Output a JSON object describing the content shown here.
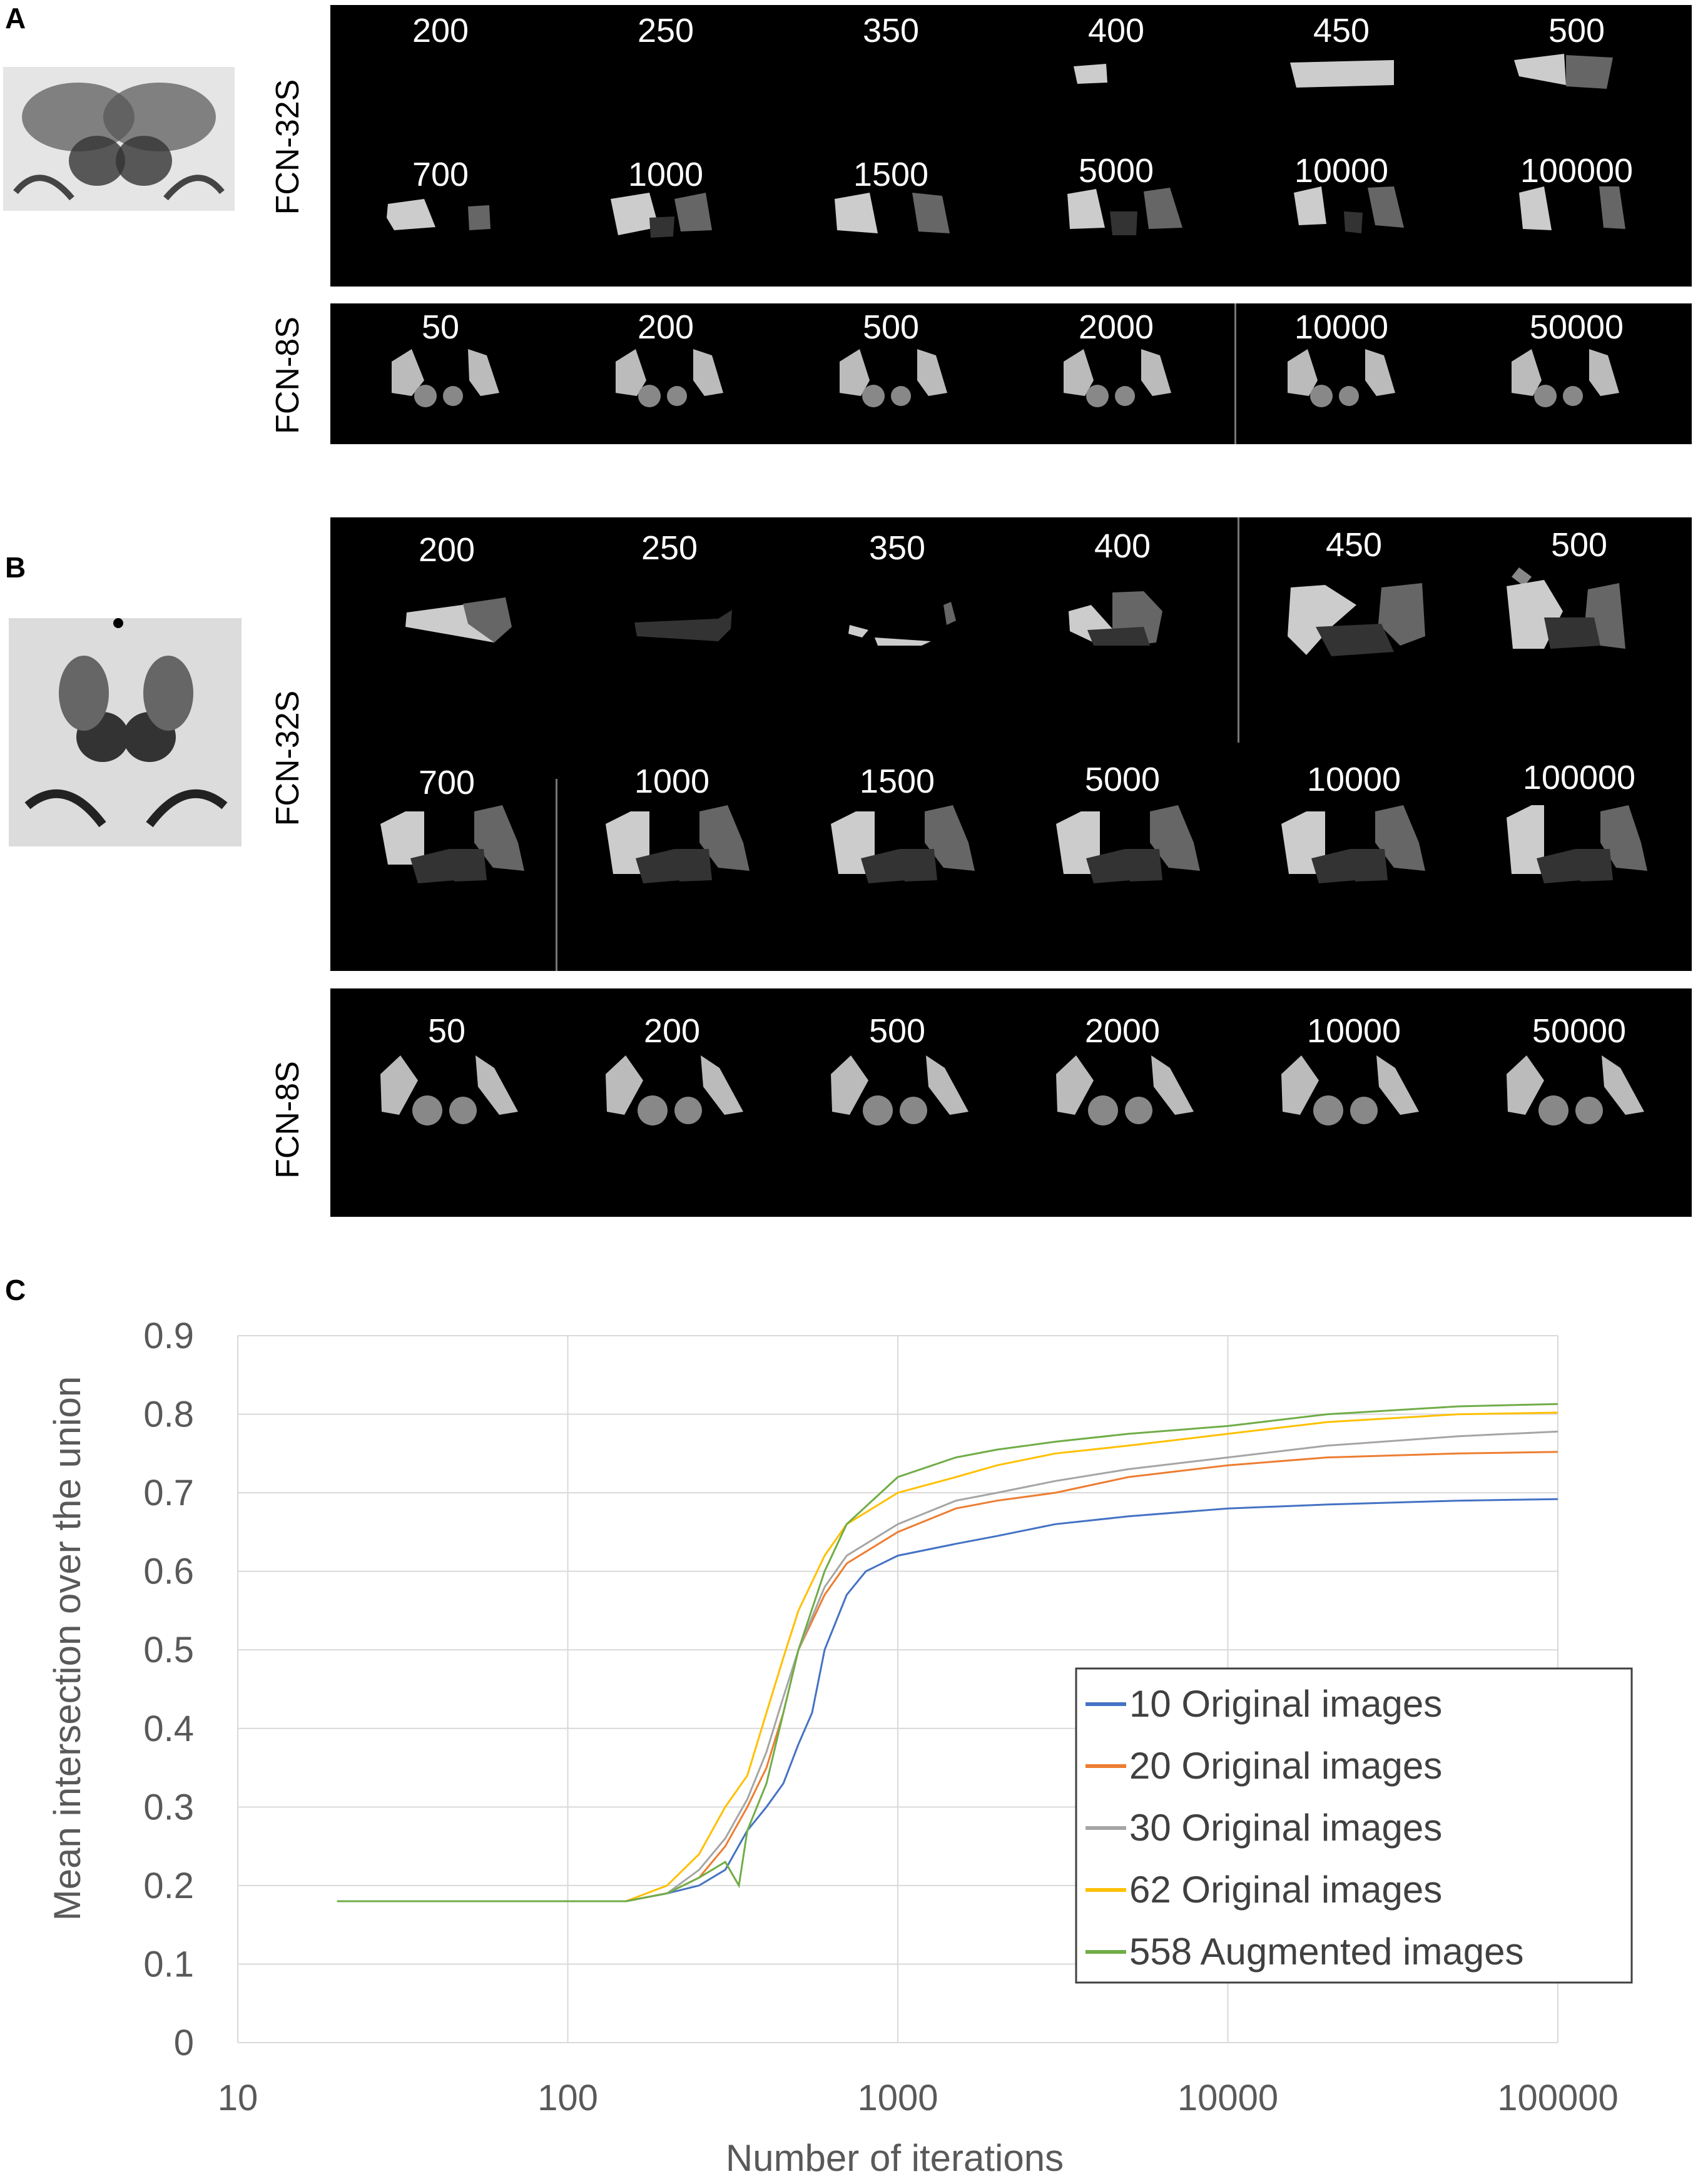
{
  "panels": {
    "a": {
      "letter": "A",
      "rows": [
        {
          "model": "FCN-32S",
          "lines": [
            [
              "200",
              "250",
              "350",
              "400",
              "450",
              "500"
            ],
            [
              "700",
              "1000",
              "1500",
              "5000",
              "10000",
              "100000"
            ]
          ]
        },
        {
          "model": "FCN-8S",
          "lines": [
            [
              "50",
              "200",
              "500",
              "2000",
              "10000",
              "50000"
            ]
          ]
        }
      ]
    },
    "b": {
      "letter": "B",
      "rows": [
        {
          "model": "FCN-32S",
          "lines": [
            [
              "200",
              "250",
              "350",
              "400",
              "450",
              "500"
            ],
            [
              "700",
              "1000",
              "1500",
              "5000",
              "10000",
              "100000"
            ]
          ]
        },
        {
          "model": "FCN-8S",
          "lines": [
            [
              "50",
              "200",
              "500",
              "2000",
              "10000",
              "50000"
            ]
          ]
        }
      ]
    },
    "c": {
      "letter": "C"
    }
  },
  "chart_data": {
    "type": "line",
    "xlabel": "Number of iterations",
    "ylabel": "Mean intersection over the union",
    "x_scale": "log",
    "xlim": [
      10,
      100000
    ],
    "ylim": [
      0,
      0.9
    ],
    "x_ticks": [
      "10",
      "100",
      "1000",
      "10000",
      "100000"
    ],
    "y_ticks": [
      "0",
      "0.1",
      "0.2",
      "0.3",
      "0.4",
      "0.5",
      "0.6",
      "0.7",
      "0.8",
      "0.9"
    ],
    "grid": true,
    "legend_position": "bottom-right",
    "series": [
      {
        "name": "10 Original images",
        "color": "#4472c4",
        "points": [
          [
            20,
            0.18
          ],
          [
            150,
            0.18
          ],
          [
            200,
            0.19
          ],
          [
            250,
            0.2
          ],
          [
            300,
            0.22
          ],
          [
            350,
            0.27
          ],
          [
            400,
            0.3
          ],
          [
            450,
            0.33
          ],
          [
            500,
            0.38
          ],
          [
            550,
            0.42
          ],
          [
            600,
            0.5
          ],
          [
            700,
            0.57
          ],
          [
            800,
            0.6
          ],
          [
            1000,
            0.62
          ],
          [
            1500,
            0.635
          ],
          [
            2000,
            0.645
          ],
          [
            3000,
            0.66
          ],
          [
            5000,
            0.67
          ],
          [
            10000,
            0.68
          ],
          [
            20000,
            0.685
          ],
          [
            50000,
            0.69
          ],
          [
            100000,
            0.692
          ]
        ]
      },
      {
        "name": "20 Original images",
        "color": "#ed7d31",
        "points": [
          [
            20,
            0.18
          ],
          [
            150,
            0.18
          ],
          [
            200,
            0.19
          ],
          [
            250,
            0.21
          ],
          [
            300,
            0.25
          ],
          [
            350,
            0.3
          ],
          [
            400,
            0.35
          ],
          [
            450,
            0.42
          ],
          [
            500,
            0.5
          ],
          [
            600,
            0.57
          ],
          [
            700,
            0.61
          ],
          [
            1000,
            0.65
          ],
          [
            1500,
            0.68
          ],
          [
            2000,
            0.69
          ],
          [
            3000,
            0.7
          ],
          [
            5000,
            0.72
          ],
          [
            10000,
            0.735
          ],
          [
            20000,
            0.745
          ],
          [
            50000,
            0.75
          ],
          [
            100000,
            0.752
          ]
        ]
      },
      {
        "name": "30 Original images",
        "color": "#a5a5a5",
        "points": [
          [
            20,
            0.18
          ],
          [
            150,
            0.18
          ],
          [
            200,
            0.19
          ],
          [
            250,
            0.22
          ],
          [
            300,
            0.26
          ],
          [
            350,
            0.31
          ],
          [
            400,
            0.37
          ],
          [
            450,
            0.44
          ],
          [
            500,
            0.5
          ],
          [
            600,
            0.58
          ],
          [
            700,
            0.62
          ],
          [
            1000,
            0.66
          ],
          [
            1500,
            0.69
          ],
          [
            2000,
            0.7
          ],
          [
            3000,
            0.715
          ],
          [
            5000,
            0.73
          ],
          [
            10000,
            0.745
          ],
          [
            20000,
            0.76
          ],
          [
            50000,
            0.772
          ],
          [
            100000,
            0.778
          ]
        ]
      },
      {
        "name": "62 Original images",
        "color": "#ffc000",
        "points": [
          [
            20,
            0.18
          ],
          [
            150,
            0.18
          ],
          [
            200,
            0.2
          ],
          [
            250,
            0.24
          ],
          [
            300,
            0.3
          ],
          [
            350,
            0.34
          ],
          [
            400,
            0.42
          ],
          [
            450,
            0.49
          ],
          [
            500,
            0.55
          ],
          [
            600,
            0.62
          ],
          [
            700,
            0.66
          ],
          [
            1000,
            0.7
          ],
          [
            1500,
            0.72
          ],
          [
            2000,
            0.735
          ],
          [
            3000,
            0.75
          ],
          [
            5000,
            0.76
          ],
          [
            10000,
            0.775
          ],
          [
            20000,
            0.79
          ],
          [
            50000,
            0.8
          ],
          [
            100000,
            0.802
          ]
        ]
      },
      {
        "name": "558 Augmented images",
        "color": "#70ad47",
        "points": [
          [
            20,
            0.18
          ],
          [
            150,
            0.18
          ],
          [
            200,
            0.19
          ],
          [
            250,
            0.21
          ],
          [
            300,
            0.23
          ],
          [
            330,
            0.2
          ],
          [
            350,
            0.27
          ],
          [
            400,
            0.33
          ],
          [
            450,
            0.42
          ],
          [
            500,
            0.5
          ],
          [
            600,
            0.6
          ],
          [
            700,
            0.66
          ],
          [
            1000,
            0.72
          ],
          [
            1500,
            0.745
          ],
          [
            2000,
            0.755
          ],
          [
            3000,
            0.765
          ],
          [
            5000,
            0.775
          ],
          [
            10000,
            0.785
          ],
          [
            20000,
            0.8
          ],
          [
            50000,
            0.81
          ],
          [
            100000,
            0.813
          ]
        ]
      }
    ]
  }
}
